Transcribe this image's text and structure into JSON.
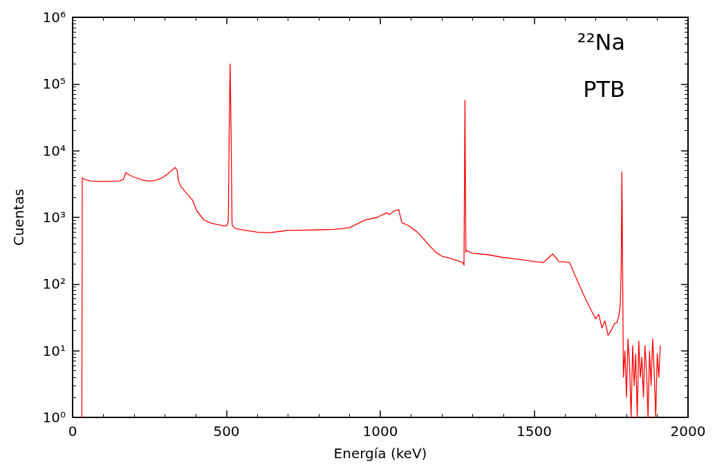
{
  "chart_data": {
    "type": "line",
    "xlabel": "Energía (keV)",
    "ylabel": "Cuentas",
    "log": "y",
    "grid": false,
    "marker": "none",
    "line_style": "solid",
    "xlim": [
      0,
      2000
    ],
    "xticks": [
      0,
      500,
      1000,
      1500,
      2000
    ],
    "ylim": [
      1,
      1000000
    ],
    "yticks": [
      {
        "value": 1,
        "label": "10⁰"
      },
      {
        "value": 10,
        "label": "10¹"
      },
      {
        "value": 100,
        "label": "10²"
      },
      {
        "value": 1000,
        "label": "10³"
      },
      {
        "value": 10000,
        "label": "10⁴"
      },
      {
        "value": 100000,
        "label": "10⁵"
      },
      {
        "value": 1000000,
        "label": "10⁶"
      }
    ],
    "annotations": [
      "²²Na",
      "PTB"
    ],
    "series": [
      {
        "color": "#ff0000",
        "x": [
          30,
          31.5,
          40,
          60,
          80,
          100,
          120,
          150,
          165,
          173,
          185,
          200,
          230,
          250,
          270,
          290,
          310,
          325,
          333,
          340,
          344,
          353,
          370,
          390,
          404,
          420,
          427,
          450,
          470,
          494,
          502,
          506,
          509,
          512,
          515,
          518,
          519,
          528,
          560,
          600,
          640,
          680,
          700,
          740,
          800,
          850,
          900,
          950,
          990,
          1020,
          1030,
          1045,
          1060,
          1070,
          1090,
          1120,
          1140,
          1160,
          1180,
          1200,
          1230,
          1260,
          1268,
          1272,
          1275,
          1278,
          1280,
          1300,
          1350,
          1400,
          1450,
          1500,
          1530,
          1560,
          1570,
          1580,
          1600,
          1615,
          1630,
          1645,
          1660,
          1680,
          1700,
          1710,
          1720,
          1730,
          1740,
          1750,
          1760,
          1770,
          1776,
          1780,
          1783,
          1785,
          1787,
          1790,
          1795,
          1800,
          1805,
          1810,
          1815,
          1820,
          1825,
          1830,
          1835,
          1840,
          1845,
          1850,
          1855,
          1860,
          1865,
          1870,
          1875,
          1880,
          1885,
          1890,
          1895,
          1900,
          1905,
          1910
        ],
        "values": [
          1,
          3900,
          3700,
          3500,
          3450,
          3450,
          3450,
          3500,
          3700,
          4700,
          4300,
          4000,
          3600,
          3500,
          3600,
          3900,
          4500,
          5200,
          5600,
          5000,
          3500,
          2850,
          2300,
          1800,
          1240,
          1000,
          910,
          820,
          780,
          740,
          760,
          900,
          20000,
          200000,
          20000,
          900,
          750,
          680,
          640,
          600,
          590,
          620,
          640,
          640,
          650,
          660,
          700,
          910,
          1000,
          1170,
          1100,
          1250,
          1300,
          830,
          760,
          600,
          480,
          375,
          300,
          262,
          240,
          217,
          210,
          192,
          57000,
          300,
          317,
          290,
          275,
          250,
          235,
          217,
          210,
          282,
          250,
          217,
          215,
          210,
          144,
          100,
          70,
          45,
          30,
          35,
          22,
          28,
          17,
          20,
          25,
          27,
          35,
          49,
          200,
          4800,
          300,
          4,
          10,
          2,
          15,
          6,
          1,
          12,
          3,
          9,
          1,
          14,
          4,
          8,
          2,
          12,
          5,
          1,
          10,
          3,
          15,
          5,
          1,
          9,
          4,
          12
        ]
      }
    ]
  }
}
